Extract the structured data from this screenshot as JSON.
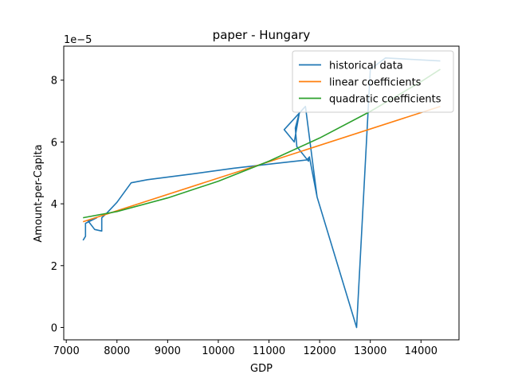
{
  "chart_data": {
    "type": "line",
    "title": "paper - Hungary",
    "xlabel": "GDP",
    "ylabel": "Amount-per-Capita",
    "y_offset_label": "1e−5",
    "xlim": [
      6950,
      14750
    ],
    "ylim": [
      -0.4,
      9.1
    ],
    "x_ticks": [
      7000,
      8000,
      9000,
      10000,
      11000,
      12000,
      13000,
      14000
    ],
    "x_tick_labels": [
      "7000",
      "8000",
      "9000",
      "10000",
      "11000",
      "12000",
      "13000",
      "14000"
    ],
    "y_ticks": [
      0,
      2,
      4,
      6,
      8
    ],
    "y_tick_labels": [
      "0",
      "2",
      "4",
      "6",
      "8"
    ],
    "grid": false,
    "legend_position": "top-right",
    "colors": {
      "historical": "#1f77b4",
      "linear": "#ff7f0e",
      "quadratic": "#2ca02c"
    },
    "series": [
      {
        "name": "historical data",
        "color": "#1f77b4",
        "points": [
          [
            7330,
            2.82
          ],
          [
            7380,
            2.95
          ],
          [
            7380,
            3.37
          ],
          [
            7600,
            3.55
          ],
          [
            7430,
            3.45
          ],
          [
            7560,
            3.17
          ],
          [
            7700,
            3.12
          ],
          [
            7700,
            3.55
          ],
          [
            7800,
            3.7
          ],
          [
            8000,
            4.05
          ],
          [
            8280,
            4.68
          ],
          [
            8600,
            4.78
          ],
          [
            9500,
            4.97
          ],
          [
            10300,
            5.15
          ],
          [
            11100,
            5.3
          ],
          [
            11750,
            5.42
          ],
          [
            11800,
            5.52
          ],
          [
            11780,
            5.38
          ],
          [
            11550,
            5.85
          ],
          [
            11520,
            6.45
          ],
          [
            11600,
            6.95
          ],
          [
            11500,
            6.0
          ],
          [
            11300,
            6.4
          ],
          [
            11720,
            7.15
          ],
          [
            11950,
            4.22
          ],
          [
            11800,
            5.5
          ],
          [
            11950,
            4.22
          ],
          [
            12730,
            0.0
          ],
          [
            13000,
            8.35
          ],
          [
            13300,
            8.72
          ],
          [
            14380,
            8.62
          ]
        ]
      },
      {
        "name": "linear coefficients",
        "color": "#ff7f0e",
        "points": [
          [
            7330,
            3.42
          ],
          [
            14380,
            7.15
          ]
        ]
      },
      {
        "name": "quadratic coefficients",
        "color": "#2ca02c",
        "points": [
          [
            7330,
            3.55
          ],
          [
            8000,
            3.75
          ],
          [
            9000,
            4.19
          ],
          [
            10000,
            4.73
          ],
          [
            11000,
            5.38
          ],
          [
            12000,
            6.13
          ],
          [
            13000,
            6.99
          ],
          [
            14000,
            7.95
          ],
          [
            14380,
            8.35
          ]
        ]
      }
    ]
  }
}
